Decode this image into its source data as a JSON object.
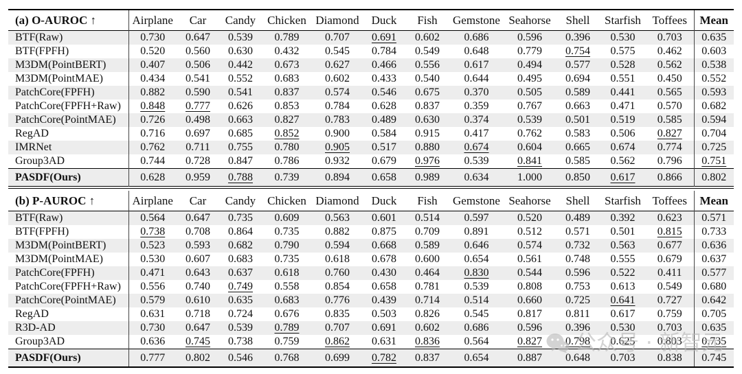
{
  "columns": [
    "Airplane",
    "Car",
    "Candy",
    "Chicken",
    "Diamond",
    "Duck",
    "Fish",
    "Gemstone",
    "Seahorse",
    "Shell",
    "Starfish",
    "Toffees",
    "Mean"
  ],
  "sections": [
    {
      "label": "(a) O-AUROC ↑",
      "rows": [
        {
          "method": "BTF(Raw)",
          "values": [
            "0.730",
            "0.647",
            "0.539",
            "0.789",
            "0.707",
            "0.691",
            "0.602",
            "0.686",
            "0.596",
            "0.396",
            "0.530",
            "0.703",
            "0.635"
          ],
          "styles": [
            "",
            "",
            "",
            "",
            "",
            "u",
            "",
            "b",
            "",
            "",
            "",
            "",
            ""
          ]
        },
        {
          "method": "BTF(FPFH)",
          "values": [
            "0.520",
            "0.560",
            "0.630",
            "0.432",
            "0.545",
            "0.784",
            "0.549",
            "0.648",
            "0.779",
            "0.754",
            "0.575",
            "0.462",
            "0.603"
          ],
          "styles": [
            "",
            "",
            "",
            "",
            "",
            "b",
            "",
            "",
            "",
            "u",
            "",
            "",
            ""
          ]
        },
        {
          "method": "M3DM(PointBERT)",
          "values": [
            "0.407",
            "0.506",
            "0.442",
            "0.673",
            "0.627",
            "0.466",
            "0.556",
            "0.617",
            "0.494",
            "0.577",
            "0.528",
            "0.562",
            "0.538"
          ],
          "styles": [
            "",
            "",
            "",
            "",
            "",
            "",
            "",
            "",
            "",
            "",
            "",
            "",
            ""
          ]
        },
        {
          "method": "M3DM(PointMAE)",
          "values": [
            "0.434",
            "0.541",
            "0.552",
            "0.683",
            "0.602",
            "0.433",
            "0.540",
            "0.644",
            "0.495",
            "0.694",
            "0.551",
            "0.450",
            "0.552"
          ],
          "styles": [
            "",
            "",
            "",
            "",
            "",
            "",
            "",
            "",
            "",
            "",
            "",
            "",
            ""
          ]
        },
        {
          "method": "PatchCore(FPFH)",
          "values": [
            "0.882",
            "0.590",
            "0.541",
            "0.837",
            "0.574",
            "0.546",
            "0.675",
            "0.370",
            "0.505",
            "0.589",
            "0.441",
            "0.565",
            "0.593"
          ],
          "styles": [
            "b",
            "",
            "",
            "",
            "",
            "",
            "",
            "",
            "",
            "",
            "",
            "",
            ""
          ]
        },
        {
          "method": "PatchCore(FPFH+Raw)",
          "values": [
            "0.848",
            "0.777",
            "0.626",
            "0.853",
            "0.784",
            "0.628",
            "0.837",
            "0.359",
            "0.767",
            "0.663",
            "0.471",
            "0.570",
            "0.682"
          ],
          "styles": [
            "u",
            "u",
            "",
            "b",
            "",
            "",
            "",
            "",
            "",
            "",
            "",
            "",
            ""
          ]
        },
        {
          "method": "PatchCore(PointMAE)",
          "values": [
            "0.726",
            "0.498",
            "0.663",
            "0.827",
            "0.783",
            "0.489",
            "0.630",
            "0.374",
            "0.539",
            "0.501",
            "0.519",
            "0.585",
            "0.594"
          ],
          "styles": [
            "",
            "",
            "",
            "",
            "",
            "",
            "",
            "",
            "",
            "",
            "",
            "",
            ""
          ]
        },
        {
          "method": "RegAD",
          "values": [
            "0.716",
            "0.697",
            "0.685",
            "0.852",
            "0.900",
            "0.584",
            "0.915",
            "0.417",
            "0.762",
            "0.583",
            "0.506",
            "0.827",
            "0.704"
          ],
          "styles": [
            "",
            "",
            "",
            "u",
            "",
            "",
            "",
            "",
            "",
            "",
            "",
            "u",
            ""
          ]
        },
        {
          "method": "IMRNet",
          "values": [
            "0.762",
            "0.711",
            "0.755",
            "0.780",
            "0.905",
            "0.517",
            "0.880",
            "0.674",
            "0.604",
            "0.665",
            "0.674",
            "0.774",
            "0.725"
          ],
          "styles": [
            "",
            "",
            "",
            "",
            "u",
            "",
            "",
            "u",
            "",
            "",
            "b",
            "",
            ""
          ]
        },
        {
          "method": "Group3AD",
          "values": [
            "0.744",
            "0.728",
            "0.847",
            "0.786",
            "0.932",
            "0.679",
            "0.976",
            "0.539",
            "0.841",
            "0.585",
            "0.562",
            "0.796",
            "0.751"
          ],
          "styles": [
            "",
            "",
            "b",
            "",
            "b",
            "",
            "u",
            "",
            "u",
            "",
            "",
            "",
            "u"
          ]
        }
      ],
      "final_row": {
        "method": "PASDF(Ours)",
        "values": [
          "0.628",
          "0.959",
          "0.788",
          "0.739",
          "0.894",
          "0.658",
          "0.989",
          "0.634",
          "1.000",
          "0.850",
          "0.617",
          "0.866",
          "0.802"
        ],
        "styles": [
          "",
          "b",
          "u",
          "",
          "",
          "",
          "b",
          "",
          "b",
          "b",
          "u",
          "b",
          "b"
        ]
      }
    },
    {
      "label": "(b) P-AUROC ↑",
      "rows": [
        {
          "method": "BTF(Raw)",
          "values": [
            "0.564",
            "0.647",
            "0.735",
            "0.609",
            "0.563",
            "0.601",
            "0.514",
            "0.597",
            "0.520",
            "0.489",
            "0.392",
            "0.623",
            "0.571"
          ],
          "styles": [
            "",
            "",
            "",
            "",
            "",
            "",
            "",
            "",
            "",
            "",
            "",
            "",
            ""
          ]
        },
        {
          "method": "BTF(FPFH)",
          "values": [
            "0.738",
            "0.708",
            "0.864",
            "0.735",
            "0.882",
            "0.875",
            "0.709",
            "0.891",
            "0.512",
            "0.571",
            "0.501",
            "0.815",
            "0.733"
          ],
          "styles": [
            "u",
            "",
            "b",
            "",
            "b",
            "b",
            "",
            "b",
            "",
            "",
            "",
            "u",
            ""
          ]
        },
        {
          "method": "M3DM(PointBERT)",
          "values": [
            "0.523",
            "0.593",
            "0.682",
            "0.790",
            "0.594",
            "0.668",
            "0.589",
            "0.646",
            "0.574",
            "0.732",
            "0.563",
            "0.677",
            "0.636"
          ],
          "styles": [
            "",
            "",
            "",
            "b",
            "",
            "",
            "",
            "",
            "",
            "",
            "",
            "",
            ""
          ]
        },
        {
          "method": "M3DM(PointMAE)",
          "values": [
            "0.530",
            "0.607",
            "0.683",
            "0.735",
            "0.618",
            "0.678",
            "0.600",
            "0.654",
            "0.561",
            "0.748",
            "0.555",
            "0.679",
            "0.637"
          ],
          "styles": [
            "",
            "",
            "",
            "",
            "",
            "",
            "",
            "",
            "",
            "",
            "",
            "",
            ""
          ]
        },
        {
          "method": "PatchCore(FPFH)",
          "values": [
            "0.471",
            "0.643",
            "0.637",
            "0.618",
            "0.760",
            "0.430",
            "0.464",
            "0.830",
            "0.544",
            "0.596",
            "0.522",
            "0.411",
            "0.577"
          ],
          "styles": [
            "",
            "",
            "",
            "",
            "",
            "",
            "",
            "u",
            "",
            "",
            "",
            "",
            ""
          ]
        },
        {
          "method": "PatchCore(FPFH+Raw)",
          "values": [
            "0.556",
            "0.740",
            "0.749",
            "0.558",
            "0.854",
            "0.658",
            "0.781",
            "0.539",
            "0.808",
            "0.753",
            "0.613",
            "0.549",
            "0.680"
          ],
          "styles": [
            "",
            "",
            "u",
            "",
            "",
            "",
            "",
            "",
            "",
            "",
            "",
            "",
            ""
          ]
        },
        {
          "method": "PatchCore(PointMAE)",
          "values": [
            "0.579",
            "0.610",
            "0.635",
            "0.683",
            "0.776",
            "0.439",
            "0.714",
            "0.514",
            "0.660",
            "0.725",
            "0.641",
            "0.727",
            "0.642"
          ],
          "styles": [
            "",
            "",
            "",
            "",
            "",
            "",
            "",
            "",
            "",
            "",
            "u",
            "",
            ""
          ]
        },
        {
          "method": "RegAD",
          "values": [
            "0.631",
            "0.718",
            "0.724",
            "0.676",
            "0.835",
            "0.503",
            "0.826",
            "0.545",
            "0.817",
            "0.811",
            "0.617",
            "0.759",
            "0.705"
          ],
          "styles": [
            "",
            "",
            "",
            "",
            "",
            "",
            "",
            "",
            "",
            "b",
            "",
            "",
            ""
          ]
        },
        {
          "method": "R3D-AD",
          "values": [
            "0.730",
            "0.647",
            "0.539",
            "0.789",
            "0.707",
            "0.691",
            "0.602",
            "0.686",
            "0.596",
            "0.396",
            "0.530",
            "0.703",
            "0.635"
          ],
          "styles": [
            "",
            "",
            "",
            "u",
            "",
            "",
            "",
            "",
            "",
            "",
            "",
            "",
            ""
          ]
        },
        {
          "method": "Group3AD",
          "values": [
            "0.636",
            "0.745",
            "0.738",
            "0.759",
            "0.862",
            "0.631",
            "0.836",
            "0.564",
            "0.827",
            "0.798",
            "0.625",
            "0.803",
            "0.735"
          ],
          "styles": [
            "",
            "u",
            "",
            "",
            "u",
            "",
            "u",
            "",
            "u",
            "u",
            "",
            "",
            "u"
          ]
        }
      ],
      "final_row": {
        "method": "PASDF(Ours)",
        "values": [
          "0.777",
          "0.802",
          "0.546",
          "0.768",
          "0.699",
          "0.782",
          "0.837",
          "0.654",
          "0.887",
          "0.648",
          "0.703",
          "0.838",
          "0.745"
        ],
        "styles": [
          "b",
          "b",
          "",
          "",
          "",
          "u",
          "b",
          "",
          "b",
          "",
          "b",
          "b",
          "b"
        ]
      }
    }
  ],
  "watermark": {
    "icon": "wechat-icon",
    "text": "公众号 · 新智元"
  }
}
